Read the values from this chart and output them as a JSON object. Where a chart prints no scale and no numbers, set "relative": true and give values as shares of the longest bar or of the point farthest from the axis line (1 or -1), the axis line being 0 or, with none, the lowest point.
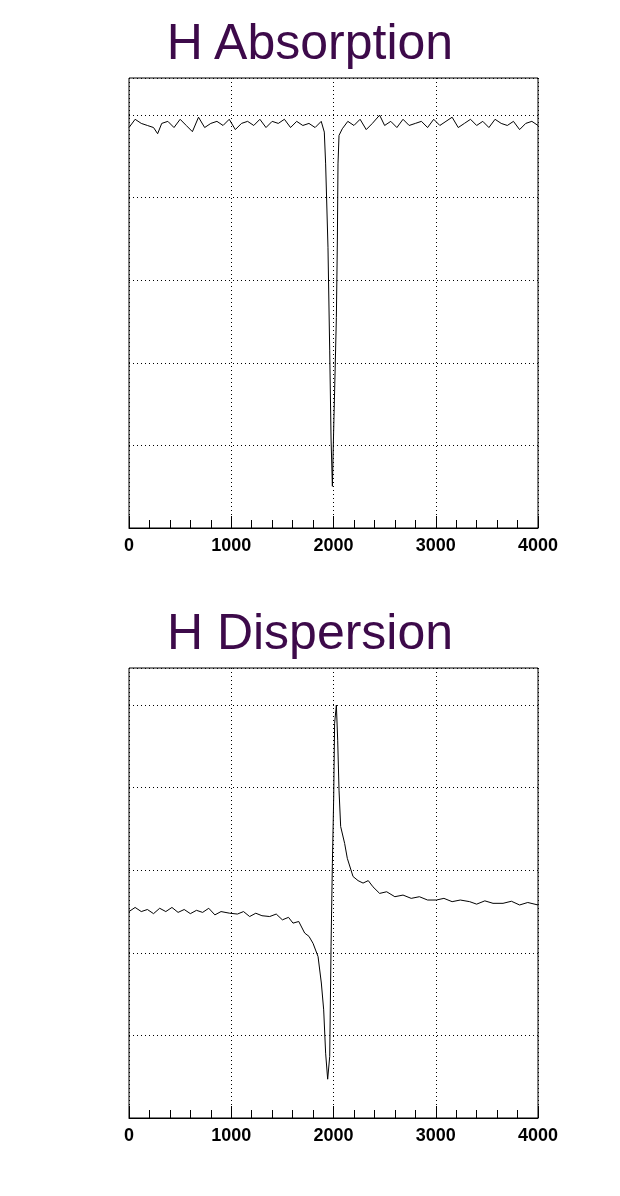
{
  "chart_data": [
    {
      "type": "line",
      "title": "H Absorption",
      "relative": true,
      "color": "#000000",
      "marker": "none",
      "grid": true,
      "xlim": [
        0,
        4000
      ],
      "xticks": [
        0,
        1000,
        2000,
        3000,
        4000
      ],
      "x": [
        0,
        60,
        120,
        180,
        240,
        280,
        320,
        380,
        440,
        500,
        560,
        620,
        680,
        740,
        800,
        860,
        920,
        980,
        1040,
        1100,
        1160,
        1220,
        1280,
        1340,
        1400,
        1460,
        1520,
        1580,
        1640,
        1700,
        1760,
        1820,
        1880,
        1910,
        1923,
        1946,
        1963,
        1976,
        1989,
        1998,
        2011,
        2028,
        2038,
        2044,
        2054,
        2086,
        2140,
        2200,
        2260,
        2320,
        2380,
        2451,
        2500,
        2560,
        2620,
        2680,
        2740,
        2800,
        2860,
        2920,
        2980,
        3040,
        3100,
        3160,
        3220,
        3280,
        3340,
        3400,
        3460,
        3520,
        3580,
        3640,
        3700,
        3760,
        3820,
        3880,
        3940,
        4000
      ],
      "values": [
        0.97,
        0.99,
        0.98,
        0.975,
        0.97,
        0.955,
        0.98,
        0.985,
        0.97,
        0.99,
        0.975,
        0.96,
        0.995,
        0.97,
        0.98,
        0.985,
        0.975,
        0.99,
        0.965,
        0.98,
        0.985,
        0.975,
        0.99,
        0.97,
        0.985,
        0.98,
        0.99,
        0.97,
        0.985,
        0.975,
        0.98,
        0.97,
        0.985,
        0.959,
        0.882,
        0.68,
        0.429,
        0.218,
        0.101,
        0.198,
        0.332,
        0.51,
        0.7,
        0.882,
        0.951,
        0.967,
        0.985,
        0.975,
        0.99,
        0.965,
        0.98,
        1.0,
        0.975,
        0.985,
        0.97,
        0.99,
        0.975,
        0.98,
        0.985,
        0.97,
        0.99,
        0.975,
        0.985,
        0.995,
        0.97,
        0.98,
        0.99,
        0.975,
        0.985,
        0.97,
        0.99,
        0.98,
        0.975,
        0.985,
        0.965,
        0.98,
        0.985,
        0.975
      ]
    },
    {
      "type": "line",
      "title": "H Dispersion",
      "relative": true,
      "color": "#000000",
      "marker": "none",
      "grid": true,
      "xlim": [
        0,
        4000
      ],
      "xticks": [
        0,
        1000,
        2000,
        3000,
        4000
      ],
      "x": [
        0,
        60,
        120,
        180,
        240,
        300,
        360,
        420,
        480,
        540,
        600,
        660,
        720,
        780,
        840,
        900,
        985,
        1060,
        1120,
        1180,
        1240,
        1300,
        1376,
        1440,
        1500,
        1560,
        1604,
        1660,
        1718,
        1760,
        1800,
        1849,
        1881,
        1904,
        1923,
        1943,
        1963,
        1976,
        1989,
        2002,
        2011,
        2028,
        2041,
        2054,
        2070,
        2109,
        2135,
        2191,
        2240,
        2289,
        2340,
        2386,
        2451,
        2520,
        2600,
        2680,
        2760,
        2840,
        2920,
        3006,
        3080,
        3160,
        3240,
        3332,
        3400,
        3480,
        3560,
        3658,
        3740,
        3820,
        3900,
        4000
      ],
      "values": [
        0.5,
        0.51,
        0.5,
        0.505,
        0.495,
        0.508,
        0.5,
        0.51,
        0.498,
        0.505,
        0.495,
        0.503,
        0.498,
        0.508,
        0.492,
        0.5,
        0.496,
        0.494,
        0.5,
        0.488,
        0.496,
        0.49,
        0.488,
        0.494,
        0.48,
        0.486,
        0.472,
        0.476,
        0.448,
        0.44,
        0.423,
        0.391,
        0.327,
        0.262,
        0.157,
        0.094,
        0.149,
        0.415,
        0.617,
        0.778,
        0.956,
        1.0,
        0.915,
        0.794,
        0.706,
        0.665,
        0.629,
        0.585,
        0.575,
        0.569,
        0.575,
        0.56,
        0.544,
        0.548,
        0.536,
        0.54,
        0.532,
        0.536,
        0.528,
        0.528,
        0.532,
        0.524,
        0.528,
        0.524,
        0.518,
        0.526,
        0.52,
        0.52,
        0.525,
        0.516,
        0.522,
        0.516
      ]
    }
  ]
}
